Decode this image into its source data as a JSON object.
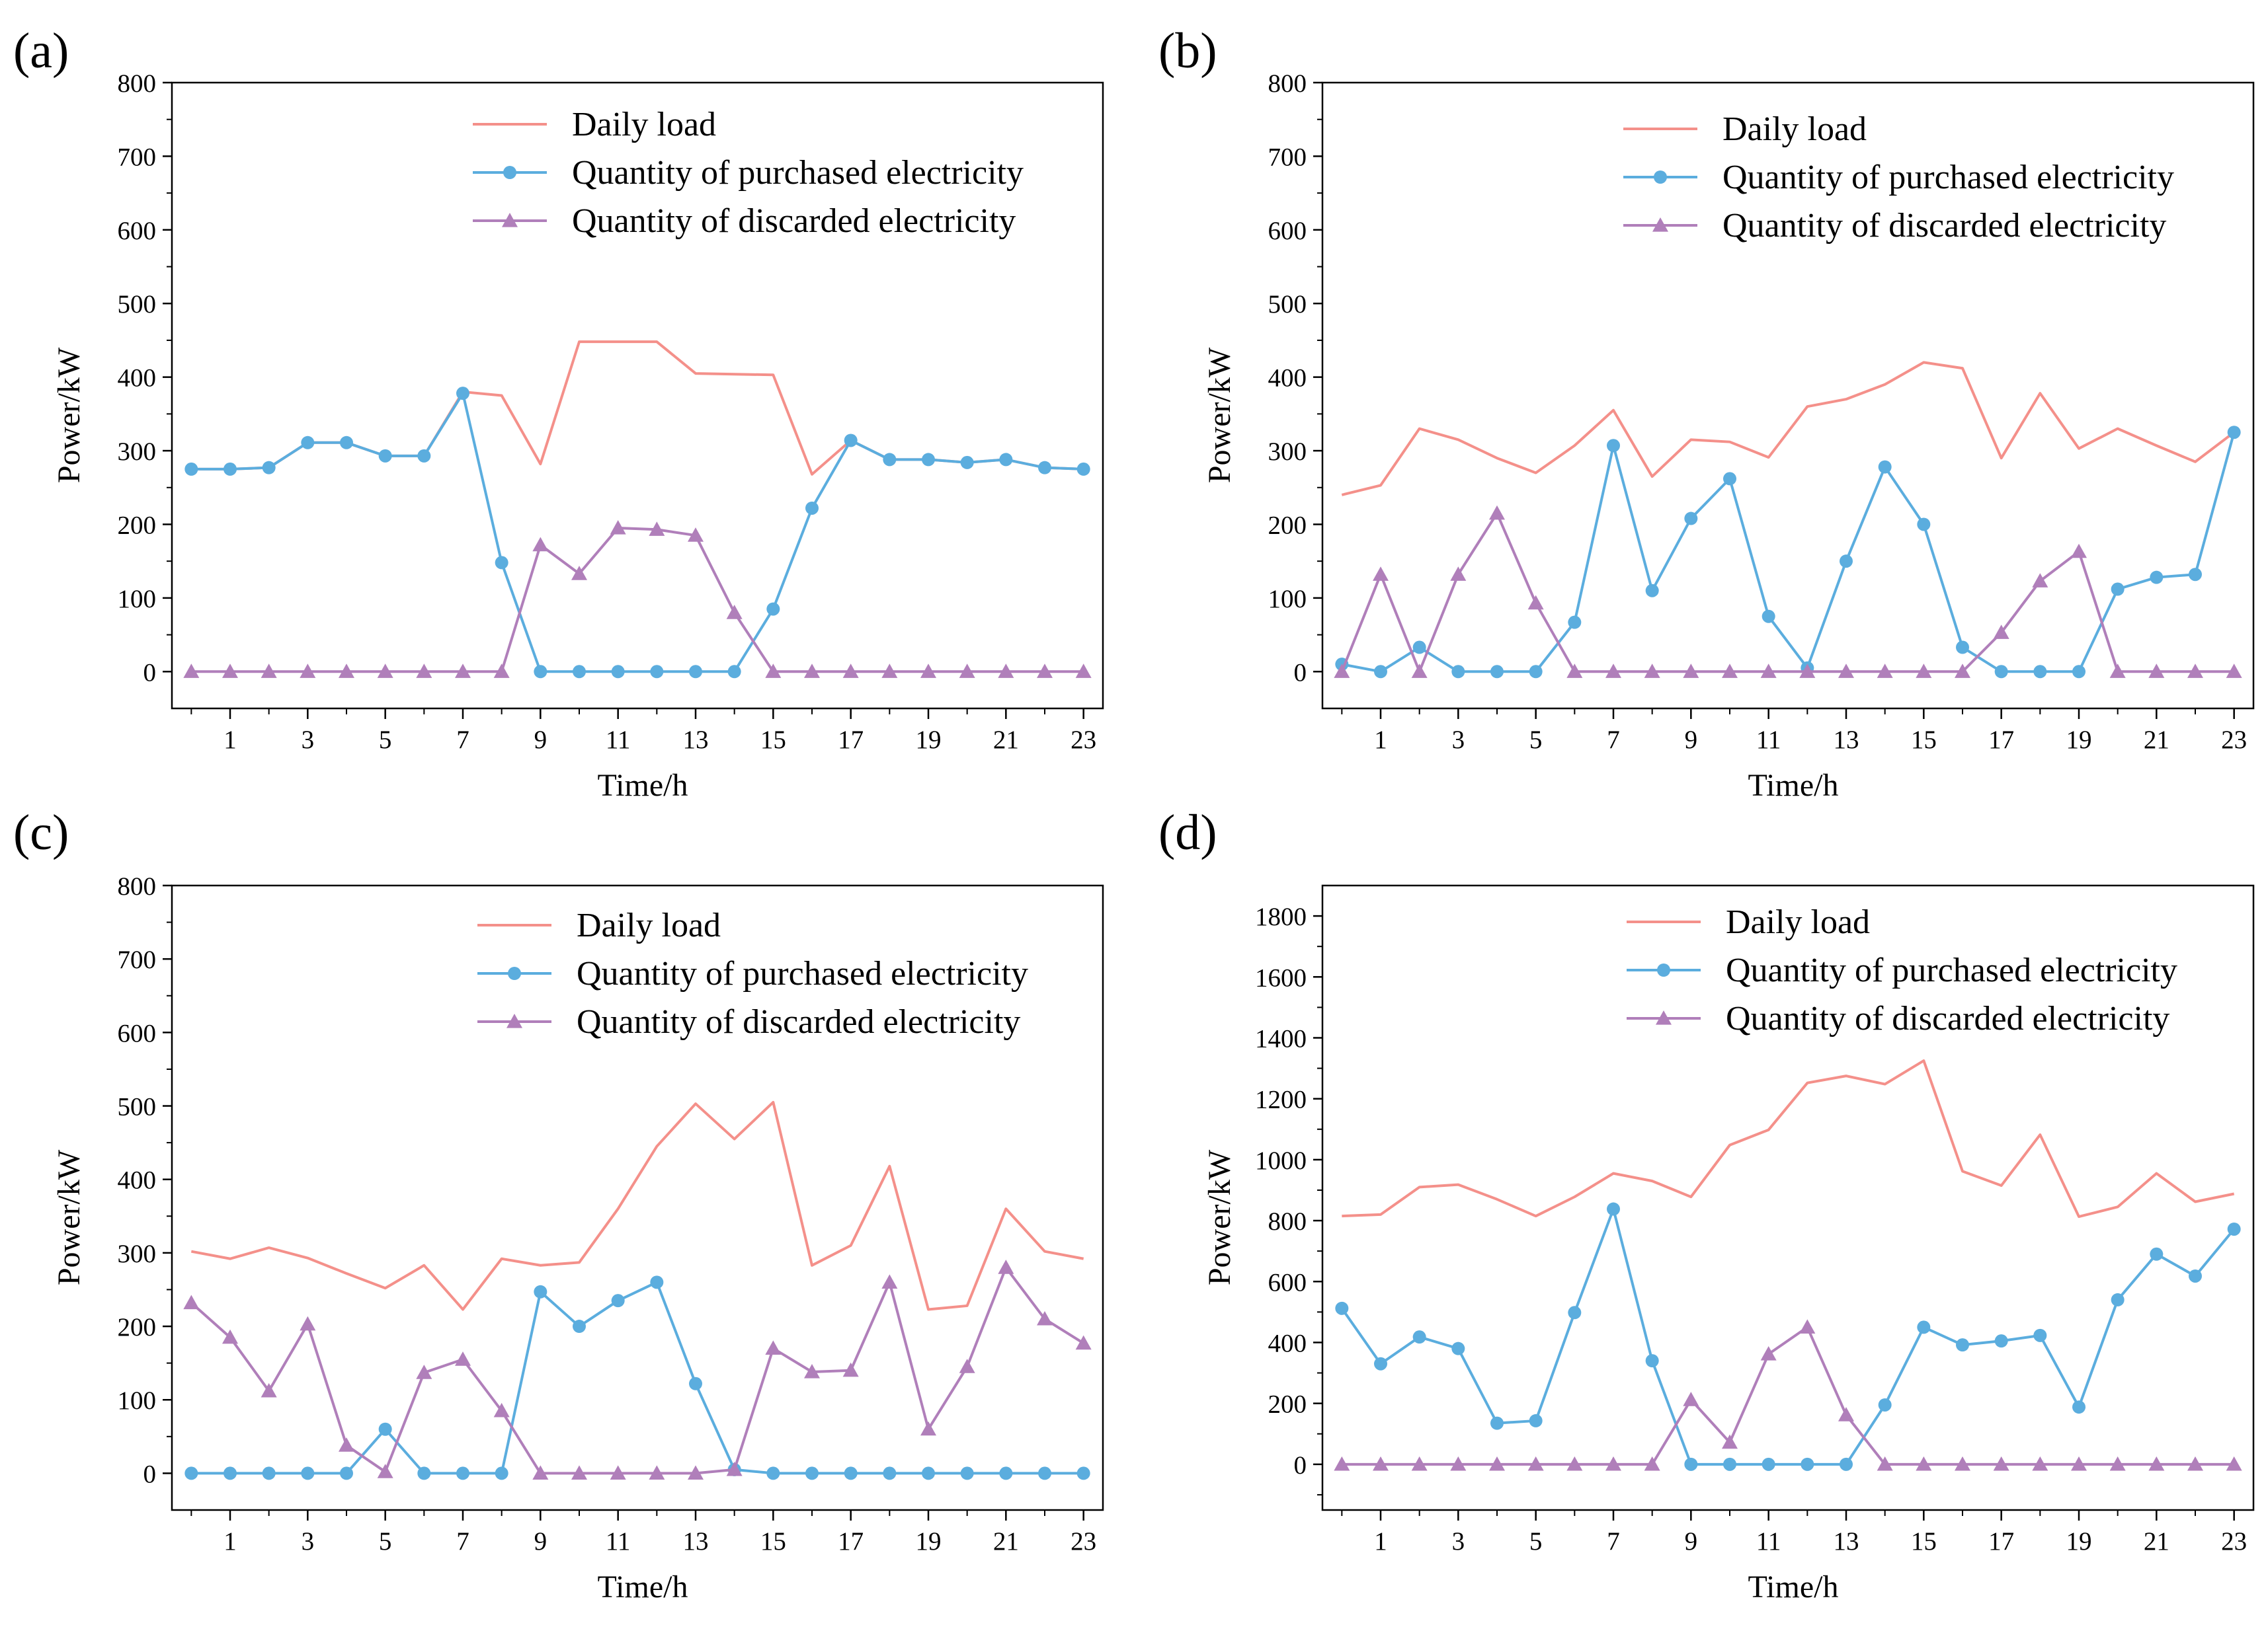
{
  "colors": {
    "daily_load": "#f4908a",
    "purchased": "#5badde",
    "discarded": "#b07fba",
    "axis": "#000000"
  },
  "chart_data": [
    {
      "id": "a",
      "panel_label": "(a)",
      "type": "line",
      "xlabel": "Time/h",
      "ylabel": "Power/kW",
      "ylim": [
        -50,
        800
      ],
      "y_ticks": [
        0,
        100,
        200,
        300,
        400,
        500,
        600,
        700,
        800
      ],
      "xlim": [
        -0.5,
        23.5
      ],
      "x_ticks": [
        1,
        3,
        5,
        7,
        9,
        11,
        13,
        15,
        17,
        19,
        21,
        23
      ],
      "x": [
        0,
        1,
        2,
        3,
        4,
        5,
        6,
        7,
        8,
        9,
        10,
        11,
        12,
        13,
        14,
        15,
        16,
        17,
        18,
        19,
        20,
        21,
        22,
        23
      ],
      "legend_position": "top-right",
      "series": [
        {
          "name": "Daily load",
          "key": "daily_load",
          "marker": "none",
          "values": [
            275,
            275,
            277,
            311,
            311,
            293,
            293,
            380,
            375,
            282,
            448,
            448,
            448,
            405,
            404,
            403,
            268,
            314,
            288,
            288,
            284,
            288,
            277,
            275
          ]
        },
        {
          "name": "Quantity of purchased electricity",
          "key": "purchased",
          "marker": "circle",
          "values": [
            275,
            275,
            277,
            311,
            311,
            293,
            293,
            378,
            148,
            0,
            0,
            0,
            0,
            0,
            0,
            85,
            222,
            314,
            288,
            288,
            284,
            288,
            277,
            275
          ]
        },
        {
          "name": "Quantity of discarded electricity",
          "key": "discarded",
          "marker": "triangle",
          "values": [
            0,
            0,
            0,
            0,
            0,
            0,
            0,
            0,
            0,
            172,
            133,
            195,
            193,
            185,
            80,
            0,
            0,
            0,
            0,
            0,
            0,
            0,
            0,
            0
          ]
        }
      ]
    },
    {
      "id": "b",
      "panel_label": "(b)",
      "type": "line",
      "xlabel": "Time/h",
      "ylabel": "Power/kW",
      "ylim": [
        -50,
        800
      ],
      "y_ticks": [
        0,
        100,
        200,
        300,
        400,
        500,
        600,
        700,
        800
      ],
      "xlim": [
        -0.5,
        23.5
      ],
      "x_ticks": [
        1,
        3,
        5,
        7,
        9,
        11,
        13,
        15,
        17,
        19,
        21,
        23
      ],
      "x": [
        0,
        1,
        2,
        3,
        4,
        5,
        6,
        7,
        8,
        9,
        10,
        11,
        12,
        13,
        14,
        15,
        16,
        17,
        18,
        19,
        20,
        21,
        22,
        23
      ],
      "legend_position": "top-right",
      "series": [
        {
          "name": "Daily load",
          "key": "daily_load",
          "marker": "none",
          "values": [
            240,
            253,
            330,
            315,
            290,
            270,
            307,
            355,
            265,
            315,
            312,
            291,
            360,
            370,
            390,
            420,
            412,
            290,
            378,
            303,
            330,
            307,
            285,
            325
          ]
        },
        {
          "name": "Quantity of purchased electricity",
          "key": "purchased",
          "marker": "circle",
          "values": [
            10,
            0,
            33,
            0,
            0,
            0,
            67,
            307,
            110,
            208,
            262,
            75,
            5,
            150,
            278,
            200,
            33,
            0,
            0,
            0,
            112,
            128,
            132,
            325
          ]
        },
        {
          "name": "Quantity of discarded electricity",
          "key": "discarded",
          "marker": "triangle",
          "values": [
            0,
            132,
            0,
            132,
            215,
            93,
            0,
            0,
            0,
            0,
            0,
            0,
            0,
            0,
            0,
            0,
            0,
            53,
            123,
            163,
            0,
            0,
            0,
            0
          ]
        }
      ]
    },
    {
      "id": "c",
      "panel_label": "(c)",
      "type": "line",
      "xlabel": "Time/h",
      "ylabel": "Power/kW",
      "ylim": [
        -50,
        800
      ],
      "y_ticks": [
        0,
        100,
        200,
        300,
        400,
        500,
        600,
        700,
        800
      ],
      "xlim": [
        -0.5,
        23.5
      ],
      "x_ticks": [
        1,
        3,
        5,
        7,
        9,
        11,
        13,
        15,
        17,
        19,
        21,
        23
      ],
      "x": [
        0,
        1,
        2,
        3,
        4,
        5,
        6,
        7,
        8,
        9,
        10,
        11,
        12,
        13,
        14,
        15,
        16,
        17,
        18,
        19,
        20,
        21,
        22,
        23
      ],
      "legend_position": "top-right",
      "series": [
        {
          "name": "Daily load",
          "key": "daily_load",
          "marker": "none",
          "values": [
            302,
            292,
            307,
            293,
            272,
            252,
            283,
            223,
            292,
            283,
            287,
            360,
            445,
            503,
            455,
            505,
            283,
            310,
            418,
            223,
            228,
            360,
            302,
            292
          ]
        },
        {
          "name": "Quantity of purchased electricity",
          "key": "purchased",
          "marker": "circle",
          "values": [
            0,
            0,
            0,
            0,
            0,
            60,
            0,
            0,
            0,
            247,
            200,
            235,
            260,
            122,
            5,
            0,
            0,
            0,
            0,
            0,
            0,
            0,
            0,
            0
          ]
        },
        {
          "name": "Quantity of discarded electricity",
          "key": "discarded",
          "marker": "triangle",
          "values": [
            232,
            185,
            112,
            203,
            38,
            2,
            137,
            155,
            85,
            0,
            0,
            0,
            0,
            0,
            5,
            170,
            138,
            140,
            260,
            60,
            145,
            280,
            210,
            177
          ]
        }
      ]
    },
    {
      "id": "d",
      "panel_label": "(d)",
      "type": "line",
      "xlabel": "Time/h",
      "ylabel": "Power/kW",
      "ylim": [
        -150,
        1900
      ],
      "y_ticks": [
        0,
        200,
        400,
        600,
        800,
        1000,
        1200,
        1400,
        1600,
        1800
      ],
      "xlim": [
        -0.5,
        23.5
      ],
      "x_ticks": [
        1,
        3,
        5,
        7,
        9,
        11,
        13,
        15,
        17,
        19,
        21,
        23
      ],
      "x": [
        0,
        1,
        2,
        3,
        4,
        5,
        6,
        7,
        8,
        9,
        10,
        11,
        12,
        13,
        14,
        15,
        16,
        17,
        18,
        19,
        20,
        21,
        22,
        23
      ],
      "legend_position": "top-right",
      "series": [
        {
          "name": "Daily load",
          "key": "daily_load",
          "marker": "none",
          "values": [
            815,
            820,
            910,
            918,
            870,
            815,
            878,
            955,
            930,
            878,
            1048,
            1098,
            1252,
            1275,
            1248,
            1325,
            962,
            915,
            1082,
            813,
            845,
            955,
            862,
            888
          ]
        },
        {
          "name": "Quantity of purchased electricity",
          "key": "purchased",
          "marker": "circle",
          "values": [
            512,
            330,
            418,
            380,
            135,
            143,
            498,
            838,
            340,
            0,
            0,
            0,
            0,
            0,
            195,
            450,
            392,
            405,
            423,
            188,
            540,
            690,
            618,
            772
          ]
        },
        {
          "name": "Quantity of discarded electricity",
          "key": "discarded",
          "marker": "triangle",
          "values": [
            0,
            0,
            0,
            0,
            0,
            0,
            0,
            0,
            0,
            212,
            72,
            362,
            450,
            162,
            0,
            0,
            0,
            0,
            0,
            0,
            0,
            0,
            0,
            0
          ]
        }
      ]
    }
  ]
}
